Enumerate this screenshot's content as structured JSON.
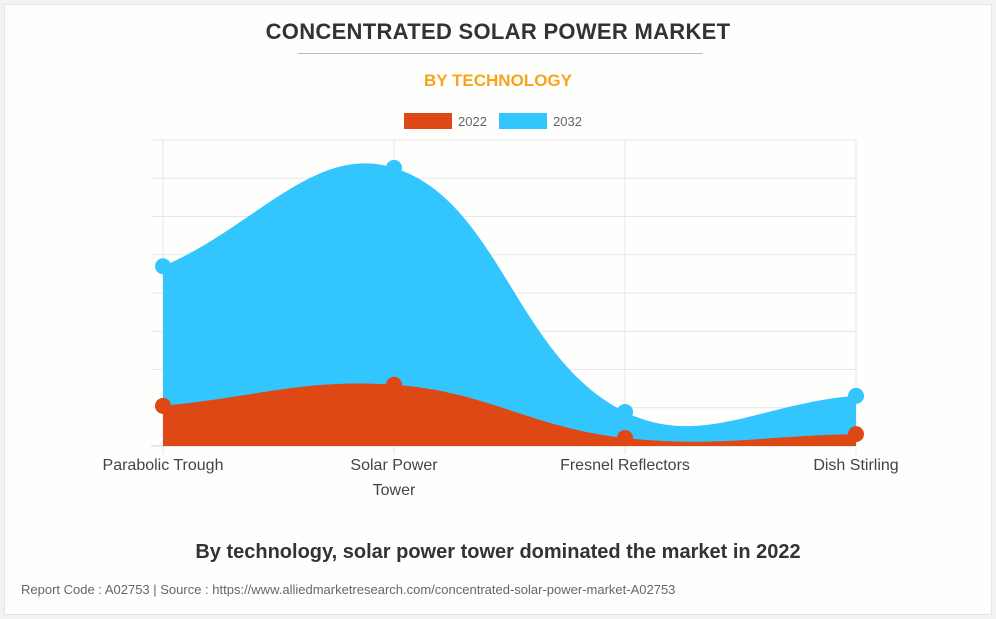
{
  "title": "CONCENTRATED SOLAR POWER MARKET",
  "subtitle": "BY TECHNOLOGY",
  "caption": "By technology, solar power tower dominated the market in 2022",
  "footer": "Report Code : A02753  |  Source : https://www.alliedmarketresearch.com/concentrated-solar-power-market-A02753",
  "chart_data": {
    "type": "area",
    "categories": [
      "Parabolic Trough",
      "Solar Power Tower",
      "Fresnel Reflectors",
      "Dish Stirling"
    ],
    "series": [
      {
        "name": "2022",
        "color": "#dd4814",
        "values": [
          1.05,
          1.6,
          0.21,
          0.31
        ]
      },
      {
        "name": "2032",
        "color": "#33c5fe",
        "values": [
          4.7,
          7.27,
          0.89,
          1.31
        ]
      }
    ],
    "ylim": [
      0,
      8
    ],
    "grid": true,
    "legend": "top-center",
    "xlabel": "",
    "ylabel": ""
  }
}
